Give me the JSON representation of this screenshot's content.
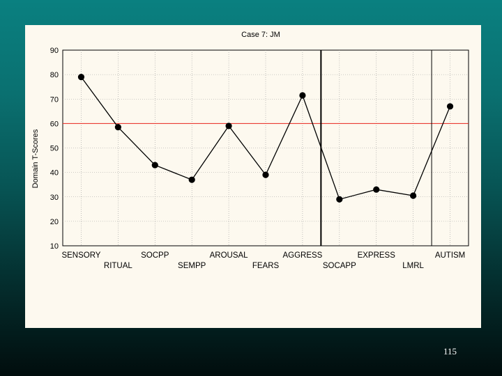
{
  "slide": {
    "page_number": "115"
  },
  "chart_data": {
    "type": "line",
    "title": "Case 7: JM",
    "xlabel": "",
    "ylabel": "Domain T-Scores",
    "ylim": [
      10,
      90
    ],
    "yticks": [
      10,
      20,
      30,
      40,
      50,
      60,
      70,
      80,
      90
    ],
    "grid": true,
    "categories": [
      "SENSORY",
      "RITUAL",
      "SOCPP",
      "SEMPP",
      "AROUSAL",
      "FEARS",
      "AGGRESS",
      "SOCAPP",
      "EXPRESS",
      "LMRL",
      "AUTISM"
    ],
    "series": [
      {
        "values": [
          79,
          58.5,
          43,
          37,
          59,
          39,
          71.5,
          29,
          33,
          30.5,
          67
        ],
        "color": "#000000"
      }
    ],
    "reference_line": {
      "y": 60,
      "color": "#e8231c"
    },
    "vertical_separators_after": [
      "AGGRESS",
      "LMRL"
    ]
  }
}
